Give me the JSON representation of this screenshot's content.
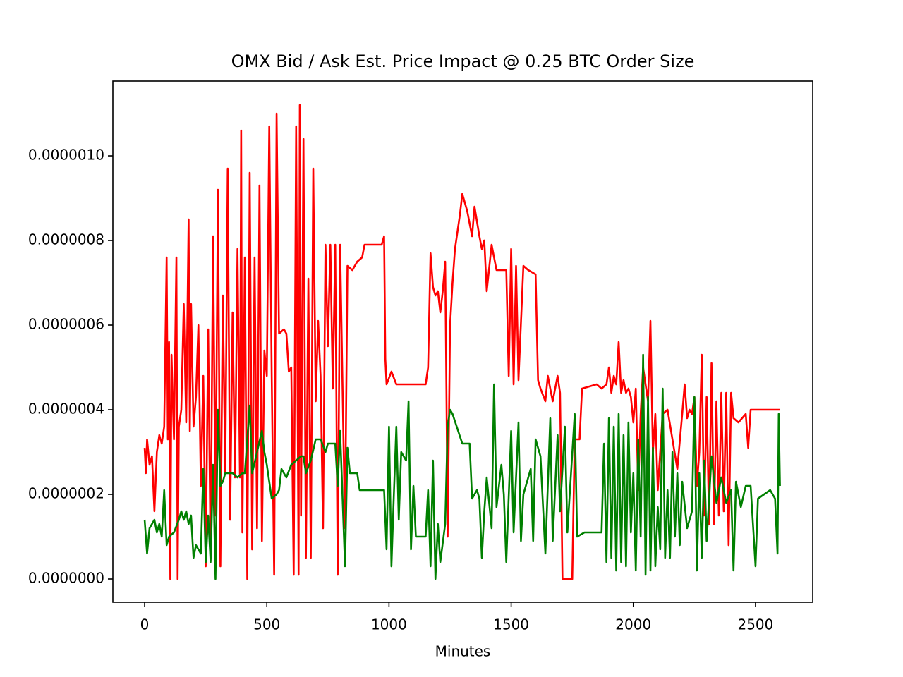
{
  "chart_data": {
    "type": "line",
    "title": "OMX Bid / Ask Est. Price Impact @ 0.25 BTC Order Size",
    "x_label": "Minutes",
    "xlim": [
      -130,
      2734
    ],
    "xticks": [
      0,
      500,
      1000,
      1500,
      2000,
      2500
    ],
    "ylim": [
      -5.5e-08,
      1.1767e-06
    ],
    "yticks": [
      {
        "value": 0,
        "label": "0.0000000"
      },
      {
        "value": 2e-07,
        "label": "0.0000002"
      },
      {
        "value": 4e-07,
        "label": "0.0000004"
      },
      {
        "value": 6e-07,
        "label": "0.0000006"
      },
      {
        "value": 8e-07,
        "label": "0.0000008"
      },
      {
        "value": 1e-06,
        "label": "0.0000010"
      }
    ],
    "series": [
      {
        "color": "#ff0000",
        "x": [
          0,
          5,
          10,
          20,
          30,
          40,
          50,
          60,
          70,
          80,
          90,
          95,
          100,
          105,
          110,
          120,
          130,
          135,
          140,
          150,
          160,
          170,
          180,
          185,
          190,
          200,
          210,
          220,
          230,
          240,
          250,
          260,
          270,
          280,
          290,
          300,
          310,
          320,
          330,
          340,
          350,
          360,
          370,
          380,
          390,
          395,
          400,
          410,
          420,
          430,
          440,
          450,
          460,
          470,
          480,
          490,
          500,
          510,
          520,
          530,
          540,
          550,
          570,
          580,
          590,
          600,
          610,
          620,
          630,
          635,
          640,
          650,
          660,
          670,
          680,
          690,
          700,
          710,
          720,
          730,
          740,
          750,
          760,
          770,
          780,
          790,
          800,
          810,
          820,
          830,
          850,
          870,
          890,
          900,
          970,
          980,
          985,
          990,
          1010,
          1030,
          1100,
          1150,
          1160,
          1170,
          1180,
          1190,
          1200,
          1210,
          1220,
          1230,
          1235,
          1240,
          1250,
          1260,
          1270,
          1290,
          1300,
          1320,
          1340,
          1350,
          1370,
          1380,
          1390,
          1400,
          1420,
          1440,
          1480,
          1490,
          1500,
          1510,
          1520,
          1530,
          1550,
          1570,
          1600,
          1610,
          1620,
          1640,
          1650,
          1670,
          1690,
          1700,
          1710,
          1750,
          1760,
          1780,
          1790,
          1850,
          1870,
          1890,
          1900,
          1910,
          1920,
          1930,
          1940,
          1950,
          1960,
          1970,
          1980,
          1990,
          2000,
          2010,
          2020,
          2030,
          2040,
          2060,
          2070,
          2080,
          2090,
          2100,
          2120,
          2140,
          2160,
          2180,
          2200,
          2210,
          2220,
          2230,
          2240,
          2250,
          2260,
          2270,
          2280,
          2290,
          2300,
          2310,
          2320,
          2330,
          2340,
          2350,
          2360,
          2370,
          2380,
          2390,
          2400,
          2410,
          2430,
          2460,
          2470,
          2480,
          2600
        ],
        "values": [
          3.1e-07,
          2.5e-07,
          3.3e-07,
          2.7e-07,
          2.9e-07,
          1.6e-07,
          3e-07,
          3.4e-07,
          3.2e-07,
          3.6e-07,
          7.6e-07,
          3.3e-07,
          5.6e-07,
          0,
          5.3e-07,
          3.3e-07,
          7.6e-07,
          0,
          3.6e-07,
          4e-07,
          6.5e-07,
          3.7e-07,
          8.5e-07,
          3.5e-07,
          6.5e-07,
          3.6e-07,
          4.3e-07,
          6e-07,
          2.2e-07,
          4.8e-07,
          3e-08,
          5.9e-07,
          5e-08,
          8.1e-07,
          1.5e-07,
          9.2e-07,
          3e-08,
          6.7e-07,
          2.5e-07,
          9.7e-07,
          1.4e-07,
          6.3e-07,
          2.4e-07,
          7.8e-07,
          2.4e-07,
          1.06e-06,
          1.1e-07,
          7.6e-07,
          0,
          9.6e-07,
          7e-08,
          7.6e-07,
          1.2e-07,
          9.3e-07,
          9e-08,
          5.4e-07,
          4.8e-07,
          1.07e-06,
          4.8e-07,
          1e-08,
          1.1e-06,
          5.8e-07,
          5.9e-07,
          5.8e-07,
          4.9e-07,
          5e-07,
          1e-08,
          1.07e-06,
          1e-08,
          1.12e-06,
          1.5e-07,
          1.04e-06,
          5e-08,
          7.1e-07,
          5e-08,
          9.7e-07,
          4.2e-07,
          6.1e-07,
          4.8e-07,
          1.2e-07,
          7.9e-07,
          5.5e-07,
          7.9e-07,
          4.5e-07,
          7.9e-07,
          1e-08,
          7.9e-07,
          4.5e-07,
          1.2e-07,
          7.4e-07,
          7.3e-07,
          7.5e-07,
          7.6e-07,
          7.9e-07,
          7.9e-07,
          8.1e-07,
          5.2e-07,
          4.6e-07,
          4.9e-07,
          4.6e-07,
          4.6e-07,
          4.6e-07,
          5e-07,
          7.7e-07,
          6.9e-07,
          6.7e-07,
          6.8e-07,
          6.3e-07,
          6.8e-07,
          7.5e-07,
          4.5e-07,
          1e-07,
          6e-07,
          7e-07,
          7.8e-07,
          8.6e-07,
          9.1e-07,
          8.7e-07,
          8.1e-07,
          8.8e-07,
          8.1e-07,
          7.8e-07,
          8e-07,
          6.8e-07,
          7.9e-07,
          7.3e-07,
          7.3e-07,
          4.8e-07,
          7.8e-07,
          4.6e-07,
          7.4e-07,
          4.7e-07,
          7.4e-07,
          7.3e-07,
          7.2e-07,
          4.7e-07,
          4.5e-07,
          4.2e-07,
          4.8e-07,
          4.2e-07,
          4.8e-07,
          4.4e-07,
          0,
          0,
          3.3e-07,
          3.3e-07,
          4.5e-07,
          4.6e-07,
          4.5e-07,
          4.6e-07,
          5e-07,
          4.4e-07,
          4.8e-07,
          4.6e-07,
          5.6e-07,
          4.4e-07,
          4.7e-07,
          4.4e-07,
          4.5e-07,
          4.3e-07,
          3.7e-07,
          4.5e-07,
          2.1e-07,
          3.9e-07,
          5e-07,
          4.2e-07,
          6.1e-07,
          3e-07,
          3.9e-07,
          2.1e-07,
          3.9e-07,
          4e-07,
          3.3e-07,
          2.6e-07,
          3.9e-07,
          4.6e-07,
          3.8e-07,
          4e-07,
          3.9e-07,
          4.3e-07,
          2.2e-07,
          3e-07,
          5.3e-07,
          1.5e-07,
          4.3e-07,
          1.3e-07,
          5.1e-07,
          1.3e-07,
          4.2e-07,
          1.5e-07,
          4.4e-07,
          1.6e-07,
          4.4e-07,
          8e-08,
          4.4e-07,
          3.8e-07,
          3.7e-07,
          3.9e-07,
          3.1e-07,
          4e-07,
          4e-07
        ]
      },
      {
        "color": "#008000",
        "x": [
          0,
          10,
          20,
          40,
          50,
          60,
          70,
          80,
          90,
          100,
          120,
          140,
          150,
          160,
          170,
          180,
          190,
          200,
          210,
          230,
          240,
          250,
          260,
          270,
          280,
          290,
          300,
          310,
          320,
          330,
          360,
          380,
          400,
          410,
          420,
          430,
          440,
          460,
          480,
          490,
          500,
          520,
          540,
          550,
          560,
          580,
          600,
          620,
          640,
          650,
          660,
          680,
          700,
          720,
          740,
          750,
          780,
          790,
          800,
          820,
          830,
          840,
          870,
          880,
          980,
          990,
          1000,
          1010,
          1020,
          1030,
          1040,
          1050,
          1070,
          1080,
          1090,
          1100,
          1110,
          1150,
          1160,
          1170,
          1180,
          1190,
          1200,
          1210,
          1230,
          1240,
          1250,
          1260,
          1300,
          1330,
          1340,
          1360,
          1370,
          1380,
          1390,
          1400,
          1420,
          1430,
          1440,
          1460,
          1470,
          1480,
          1500,
          1510,
          1530,
          1540,
          1550,
          1580,
          1590,
          1600,
          1620,
          1640,
          1660,
          1670,
          1690,
          1700,
          1720,
          1730,
          1760,
          1770,
          1800,
          1830,
          1840,
          1870,
          1880,
          1890,
          1900,
          1910,
          1920,
          1930,
          1940,
          1950,
          1960,
          1970,
          1980,
          1990,
          2000,
          2010,
          2020,
          2030,
          2040,
          2050,
          2060,
          2070,
          2080,
          2090,
          2100,
          2110,
          2120,
          2130,
          2140,
          2150,
          2160,
          2170,
          2180,
          2190,
          2200,
          2220,
          2240,
          2250,
          2260,
          2270,
          2280,
          2290,
          2300,
          2320,
          2340,
          2360,
          2380,
          2400,
          2410,
          2420,
          2440,
          2460,
          2480,
          2500,
          2510,
          2560,
          2580,
          2590,
          2595,
          2600
        ],
        "values": [
          1.4e-07,
          6e-08,
          1.2e-07,
          1.4e-07,
          1.1e-07,
          1.3e-07,
          1e-07,
          2.1e-07,
          8e-08,
          1e-07,
          1.1e-07,
          1.4e-07,
          1.6e-07,
          1.4e-07,
          1.6e-07,
          1.3e-07,
          1.5e-07,
          5e-08,
          8e-08,
          6e-08,
          2.6e-07,
          4e-08,
          1.5e-07,
          4e-08,
          2.7e-07,
          0,
          4e-07,
          2.2e-07,
          2.3e-07,
          2.5e-07,
          2.5e-07,
          2.4e-07,
          2.5e-07,
          2.5e-07,
          3.3e-07,
          4.1e-07,
          2.5e-07,
          3e-07,
          3.5e-07,
          3e-07,
          2.7e-07,
          1.9e-07,
          2e-07,
          2.1e-07,
          2.6e-07,
          2.4e-07,
          2.7e-07,
          2.8e-07,
          2.9e-07,
          2.9e-07,
          2.5e-07,
          2.8e-07,
          3.3e-07,
          3.3e-07,
          3e-07,
          3.2e-07,
          3.2e-07,
          2.2e-07,
          3.5e-07,
          3e-08,
          3.1e-07,
          2.5e-07,
          2.5e-07,
          2.1e-07,
          2.1e-07,
          7e-08,
          3.6e-07,
          3e-08,
          2e-07,
          3.6e-07,
          1.4e-07,
          3e-07,
          2.8e-07,
          4.2e-07,
          7e-08,
          2.2e-07,
          1e-07,
          1e-07,
          2.1e-07,
          3e-08,
          2.8e-07,
          0,
          1.3e-07,
          4e-08,
          1.3e-07,
          3.6e-07,
          4e-07,
          3.9e-07,
          3.2e-07,
          3.2e-07,
          1.9e-07,
          2.1e-07,
          1.9e-07,
          5e-08,
          1.6e-07,
          2.4e-07,
          1.2e-07,
          4.6e-07,
          1.7e-07,
          2.7e-07,
          2e-07,
          4e-08,
          3.5e-07,
          1.1e-07,
          3.7e-07,
          9e-08,
          2e-07,
          2.6e-07,
          9e-08,
          3.3e-07,
          2.9e-07,
          6e-08,
          3.8e-07,
          9e-08,
          3.4e-07,
          1.6e-07,
          3.6e-07,
          1.1e-07,
          3.9e-07,
          1e-07,
          1.1e-07,
          1.1e-07,
          1.1e-07,
          1.1e-07,
          3.2e-07,
          4e-08,
          3.8e-07,
          5e-08,
          3.6e-07,
          2e-08,
          3.9e-07,
          4e-08,
          3.4e-07,
          3e-08,
          3.7e-07,
          1.1e-07,
          2.5e-07,
          2e-08,
          3.3e-07,
          1e-07,
          5.3e-07,
          1e-08,
          4.3e-07,
          2e-08,
          3.1e-07,
          3e-08,
          1.7e-07,
          7e-08,
          4.5e-07,
          5e-08,
          2.1e-07,
          5e-08,
          3e-07,
          1e-07,
          2.5e-07,
          8e-08,
          2.3e-07,
          1.2e-07,
          1.6e-07,
          4.3e-07,
          2e-08,
          2.5e-07,
          5e-08,
          2.8e-07,
          9e-08,
          2.9e-07,
          1.8e-07,
          2.4e-07,
          1.8e-07,
          2.1e-07,
          2e-08,
          2.3e-07,
          1.7e-07,
          2.2e-07,
          2.2e-07,
          3e-08,
          1.9e-07,
          2.1e-07,
          1.9e-07,
          6e-08,
          3.9e-07,
          2.2e-07
        ]
      }
    ]
  }
}
